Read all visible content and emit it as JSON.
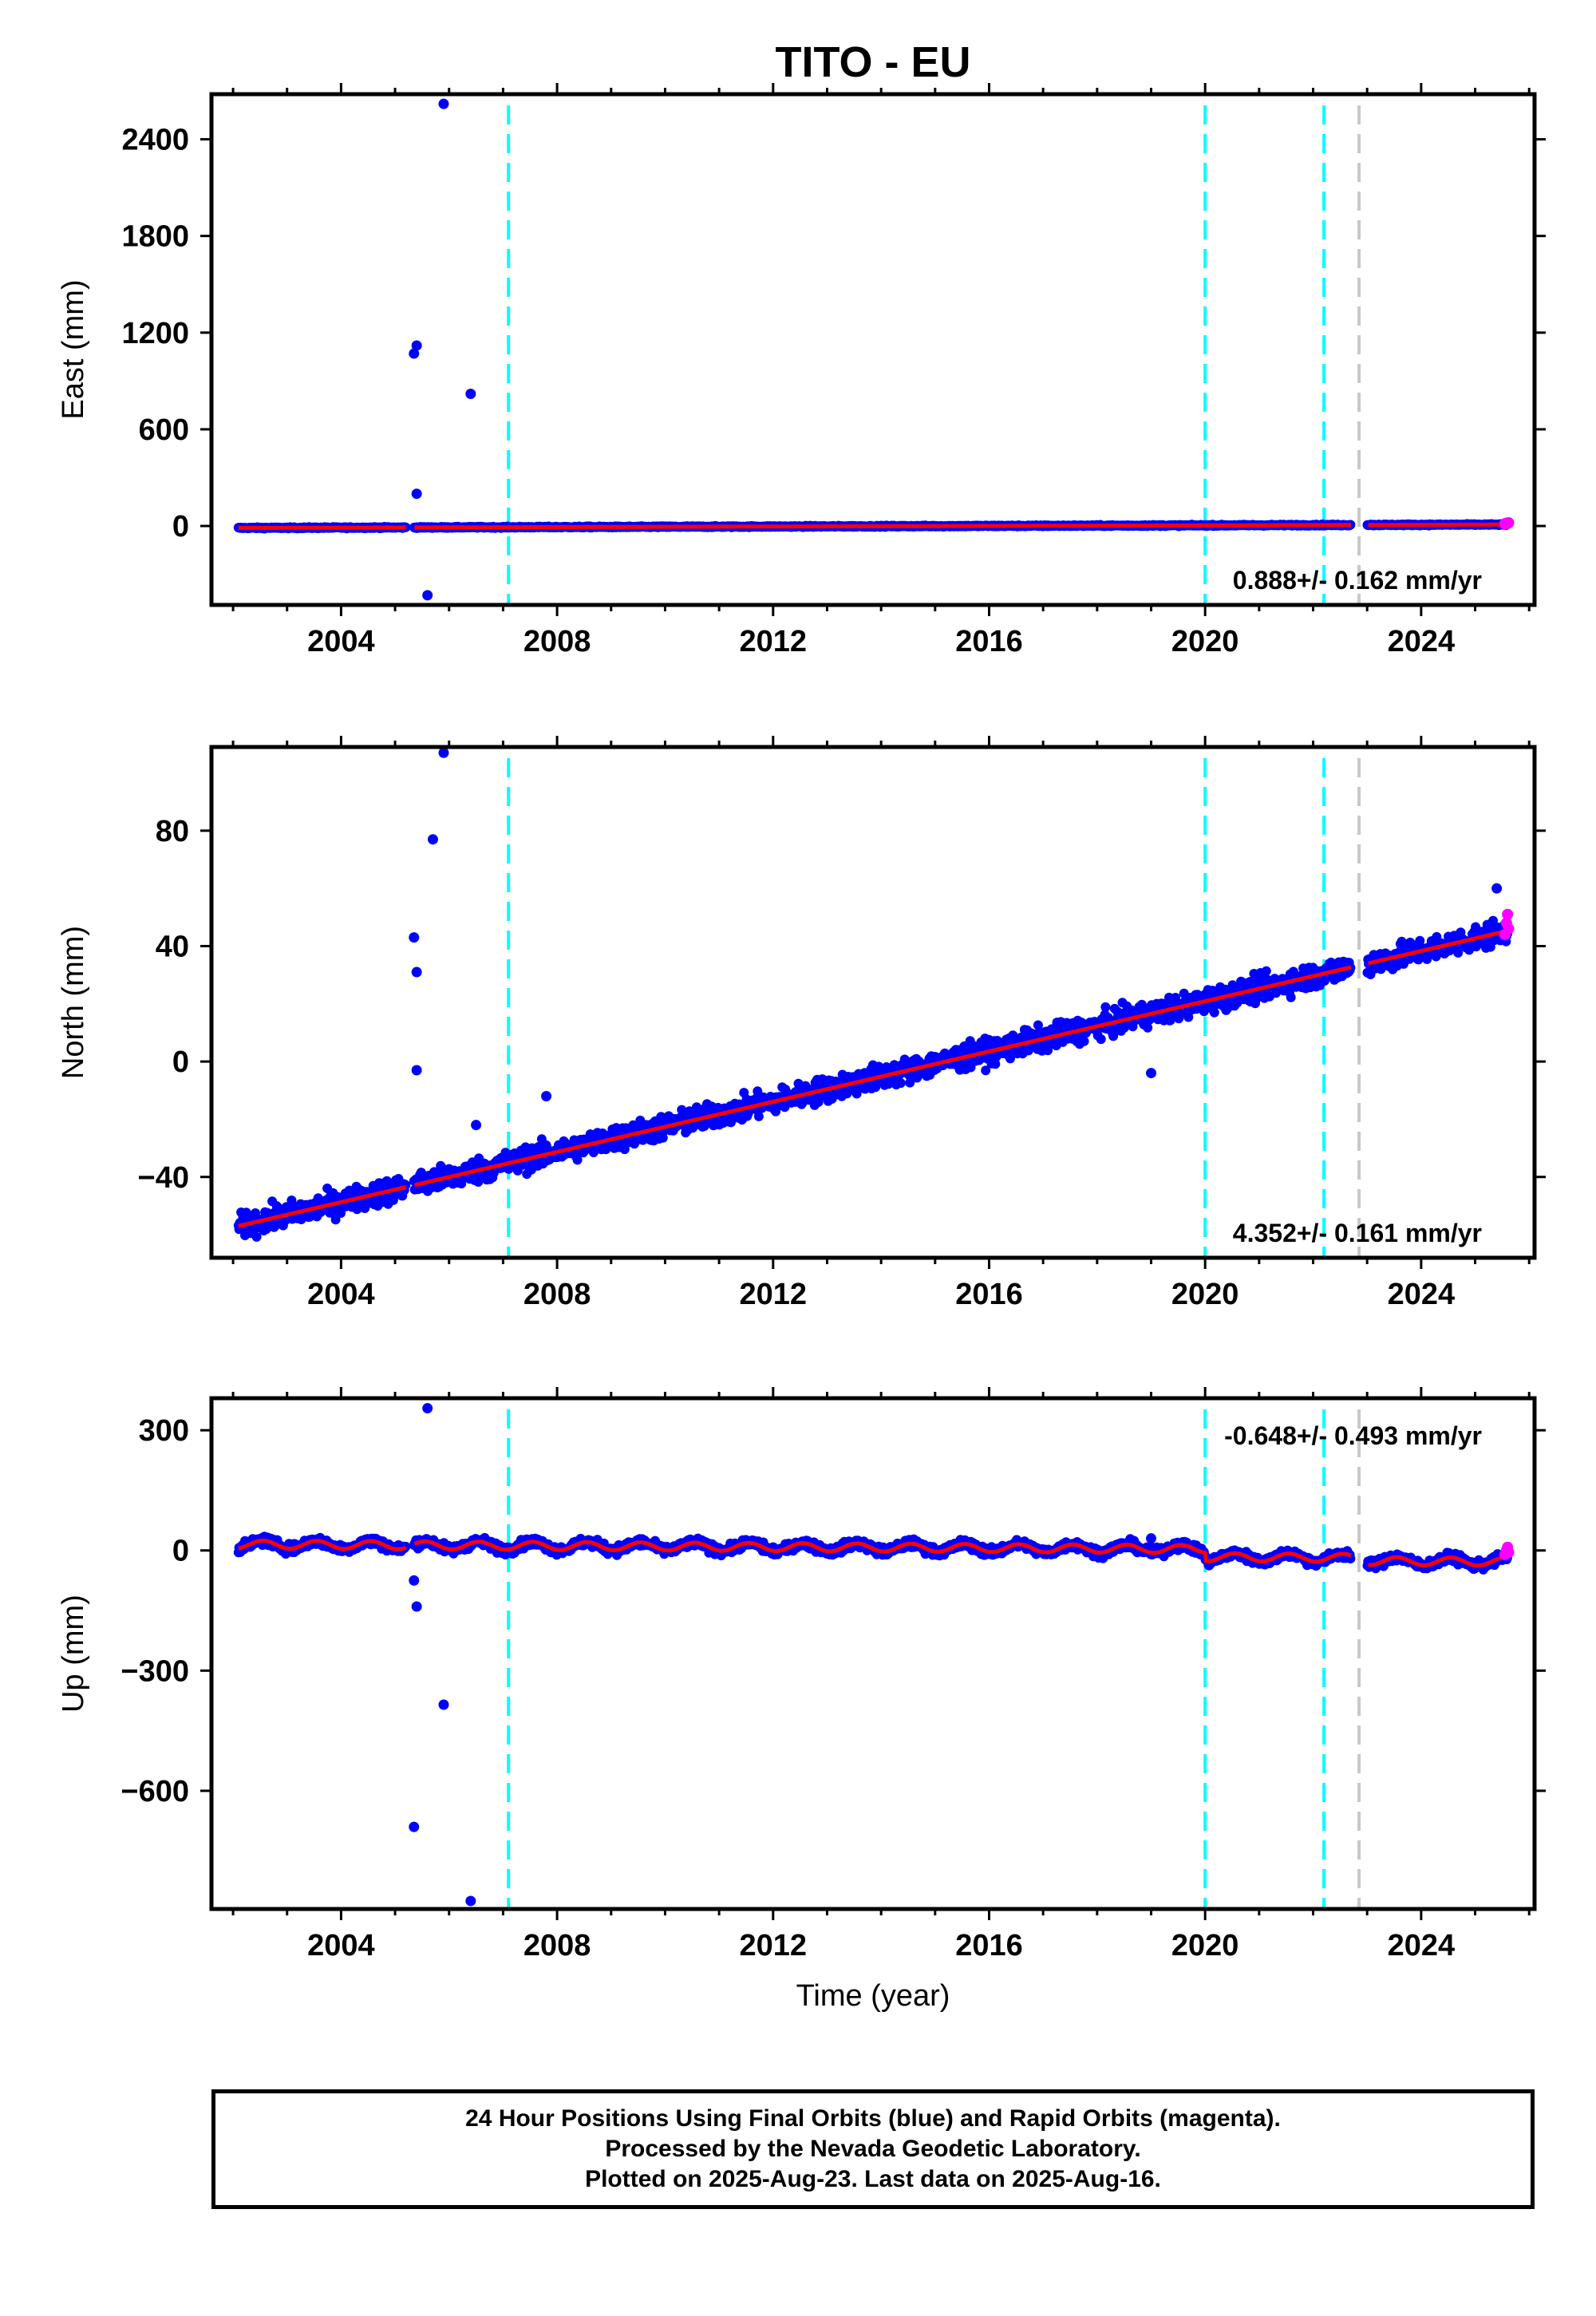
{
  "title": "TITO - EU",
  "xlabel": "Time (year)",
  "caption": {
    "line1": "24 Hour Positions Using Final Orbits (blue) and Rapid Orbits (magenta).",
    "line2": "Processed by the Nevada Geodetic Laboratory.",
    "line3": "Plotted on 2025-Aug-23. Last data on 2025-Aug-16."
  },
  "colors": {
    "final": "#0000ff",
    "rapid": "#ff00ff",
    "model": "#ff0000",
    "step_cyan": "#00ffff",
    "step_gray": "#c8c8c8"
  },
  "chart_data": [
    {
      "type": "scatter",
      "ylabel": "East (mm)",
      "rate_label": "0.888+/- 0.162 mm/yr",
      "xlim": [
        2001.6,
        2026.1
      ],
      "ylim": [
        -490,
        2680
      ],
      "xticks": [
        2004,
        2008,
        2012,
        2016,
        2020,
        2024
      ],
      "yticks": [
        0,
        600,
        1200,
        1800,
        2400
      ],
      "vlines": [
        {
          "x": 2007.1,
          "color": "cyan"
        },
        {
          "x": 2020.0,
          "color": "cyan"
        },
        {
          "x": 2022.2,
          "color": "cyan"
        },
        {
          "x": 2022.85,
          "color": "gray"
        }
      ],
      "trend": {
        "start": 2002.1,
        "end": 2025.6,
        "y0": -12,
        "rate": 0.888,
        "scatter": 3,
        "gaps": [
          [
            2005.2,
            2005.35
          ],
          [
            2022.7,
            2023.0
          ]
        ]
      },
      "outliers": [
        {
          "x": 2005.9,
          "y": 2620
        },
        {
          "x": 2005.4,
          "y": 1120
        },
        {
          "x": 2005.35,
          "y": 1070
        },
        {
          "x": 2006.4,
          "y": 820
        },
        {
          "x": 2005.4,
          "y": 200
        },
        {
          "x": 2005.6,
          "y": -430
        }
      ],
      "rapid_points": [
        [
          2025.55,
          14
        ],
        [
          2025.58,
          18
        ],
        [
          2025.6,
          16
        ],
        [
          2025.62,
          20
        ]
      ]
    },
    {
      "type": "scatter",
      "ylabel": "North (mm)",
      "rate_label": "4.352+/- 0.161 mm/yr",
      "xlim": [
        2001.6,
        2026.1
      ],
      "ylim": [
        -68,
        109
      ],
      "xticks": [
        2004,
        2008,
        2012,
        2016,
        2020,
        2024
      ],
      "yticks": [
        -40,
        0,
        40,
        80
      ],
      "vlines": [
        {
          "x": 2007.1,
          "color": "cyan"
        },
        {
          "x": 2020.0,
          "color": "cyan"
        },
        {
          "x": 2022.2,
          "color": "cyan"
        },
        {
          "x": 2022.85,
          "color": "gray"
        }
      ],
      "trend": {
        "start": 2002.1,
        "end": 2025.6,
        "y0": -57,
        "rate": 4.352,
        "scatter": 3,
        "gaps": [
          [
            2005.2,
            2005.35
          ],
          [
            2022.7,
            2023.0
          ]
        ]
      },
      "outliers": [
        {
          "x": 2005.9,
          "y": 107
        },
        {
          "x": 2005.7,
          "y": 77
        },
        {
          "x": 2005.35,
          "y": 43
        },
        {
          "x": 2005.4,
          "y": 31
        },
        {
          "x": 2005.4,
          "y": -3
        },
        {
          "x": 2006.5,
          "y": -22
        },
        {
          "x": 2007.8,
          "y": -12
        },
        {
          "x": 2019.0,
          "y": -4
        },
        {
          "x": 2025.4,
          "y": 60
        }
      ],
      "rapid_points": [
        [
          2025.55,
          44
        ],
        [
          2025.58,
          48
        ],
        [
          2025.6,
          51
        ],
        [
          2025.62,
          46
        ]
      ]
    },
    {
      "type": "scatter",
      "ylabel": "Up (mm)",
      "rate_label": "-0.648+/- 0.493 mm/yr",
      "xlim": [
        2001.6,
        2026.1
      ],
      "ylim": [
        -895,
        380
      ],
      "xticks": [
        2004,
        2008,
        2012,
        2016,
        2020,
        2024
      ],
      "yticks": [
        -600,
        -300,
        0,
        300
      ],
      "vlines": [
        {
          "x": 2007.1,
          "color": "cyan"
        },
        {
          "x": 2020.0,
          "color": "cyan"
        },
        {
          "x": 2022.2,
          "color": "cyan"
        },
        {
          "x": 2022.85,
          "color": "gray"
        }
      ],
      "trend": {
        "start": 2002.1,
        "end": 2025.6,
        "y0": 15,
        "rate": -0.648,
        "scatter": 8,
        "seasonal": 10,
        "steps": [
          [
            2020.0,
            -20
          ],
          [
            2022.85,
            -8
          ]
        ],
        "gaps": [
          [
            2005.2,
            2005.35
          ],
          [
            2022.7,
            2023.0
          ]
        ]
      },
      "outliers": [
        {
          "x": 2005.6,
          "y": 355
        },
        {
          "x": 2005.35,
          "y": -75
        },
        {
          "x": 2005.4,
          "y": -140
        },
        {
          "x": 2005.9,
          "y": -385
        },
        {
          "x": 2005.35,
          "y": -690
        },
        {
          "x": 2006.4,
          "y": -875
        },
        {
          "x": 2019.0,
          "y": 30
        }
      ],
      "rapid_points": [
        [
          2025.55,
          -10
        ],
        [
          2025.58,
          0
        ],
        [
          2025.6,
          8
        ],
        [
          2025.62,
          -5
        ]
      ]
    }
  ]
}
